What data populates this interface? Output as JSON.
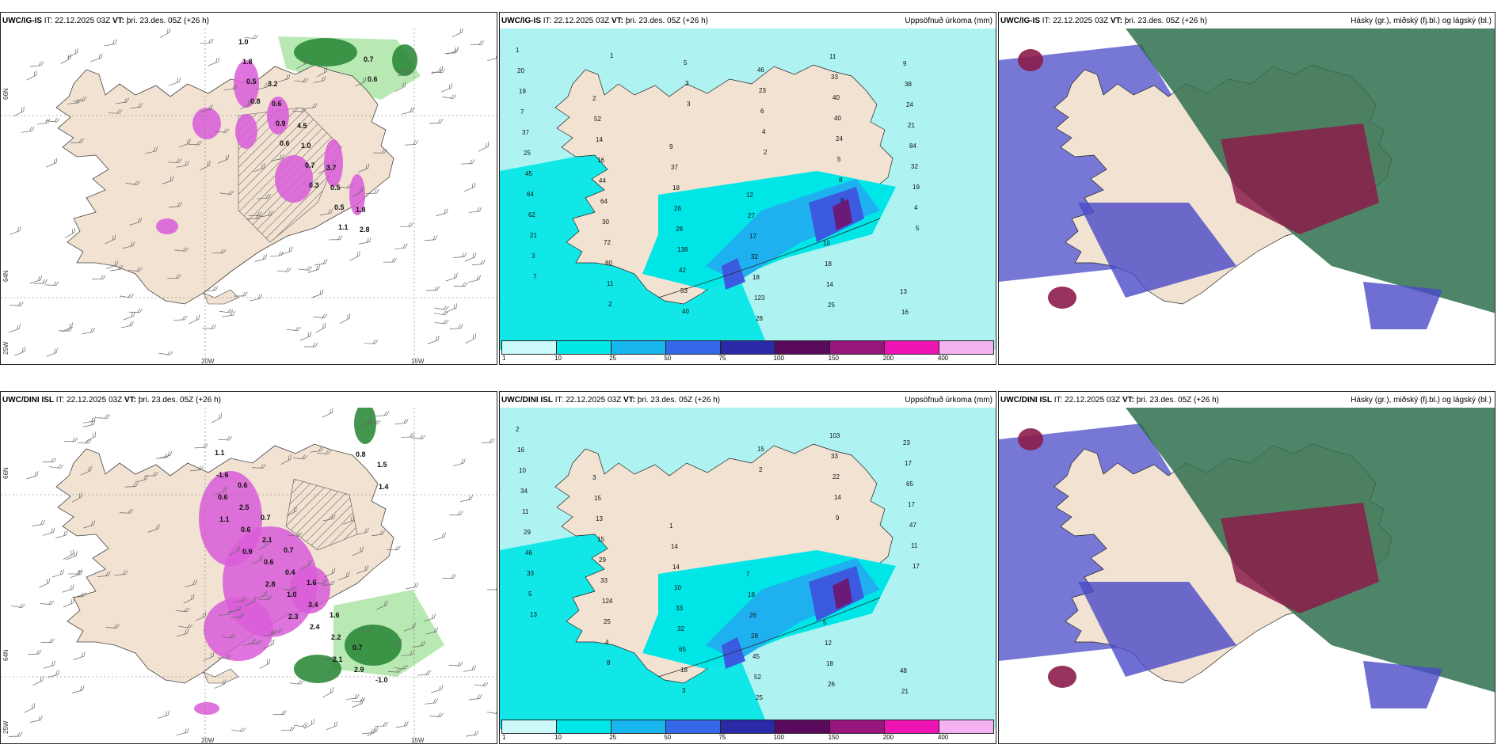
{
  "colors": {
    "land": "#f2e2d2",
    "precip_light": "#aef2f2",
    "precip_cyan": "#00e6e6",
    "precip_blue": "#1fb0ef",
    "precip_mid": "#3c5ae0",
    "precip_purple": "#6a1b78",
    "snow_magenta": "#d95cd9",
    "rain_green": "#2e8b3a",
    "cloud_high": "#2f6e4e",
    "cloud_mid": "#8b1c4a",
    "cloud_low": "#4a4ac8"
  },
  "legend": {
    "ticks": [
      "1",
      "10",
      "25",
      "50",
      "75",
      "100",
      "150",
      "200",
      "400"
    ],
    "colors": [
      "#ccfafa",
      "#00e8e8",
      "#19b5ee",
      "#3468e8",
      "#2a2aa8",
      "#5a0a5a",
      "#96167e",
      "#ee14b4",
      "#f4b2f0"
    ]
  },
  "axes": {
    "lon_labels": [
      "20W",
      "15W"
    ],
    "lat_labels": [
      "66N",
      "64N"
    ],
    "top_left_lat": "25W"
  },
  "rows": [
    {
      "model": "UWC/IG-IS",
      "it_label": "IT:",
      "it_value": "22.12.2025 03Z",
      "vt_label": "VT:",
      "vt_value": "þri. 23.des. 05Z",
      "lead": "(+26 h)",
      "precip_label": "Uppsöfnuð úrkoma (mm)",
      "cloud_label": "Hásky (gr.), miðský (fj.bl.) og lágský (bl.)",
      "precip_values": [
        "1",
        "2",
        "9",
        "12",
        "10",
        "13",
        "20",
        "52",
        "37",
        "27",
        "18",
        "16",
        "19",
        "14",
        "18",
        "17",
        "14",
        "9",
        "7",
        "16",
        "26",
        "32",
        "25",
        "38",
        "37",
        "44",
        "28",
        "18",
        "11",
        "24",
        "25",
        "64",
        "138",
        "123",
        "33",
        "21",
        "45",
        "30",
        "42",
        "28",
        "40",
        "84",
        "64",
        "72",
        "53",
        "46",
        "40",
        "32",
        "62",
        "80",
        "40",
        "23",
        "24",
        "19",
        "21",
        "11",
        "5",
        "6",
        "5",
        "4",
        "3",
        "2",
        "3",
        "4",
        "8",
        "5",
        "7",
        "1",
        "3",
        "2",
        "8"
      ],
      "phase_values": [
        "1.0",
        "3.2",
        "4.5",
        "3.7",
        "1.8",
        "1.8",
        "0.6",
        "1.0",
        "0.5",
        "2.8",
        "0.5",
        "0.9",
        "0.7",
        "0.5",
        "0.7",
        "0.8",
        "0.6",
        "0.3",
        "1.1",
        "0.6"
      ]
    },
    {
      "model": "UWC/DINI ISL",
      "it_label": "IT:",
      "it_value": "22.12.2025 03Z",
      "vt_label": "VT:",
      "vt_value": "þri. 23.des. 05Z",
      "lead": "(+26 h)",
      "precip_label": "Uppsöfnuð úrkoma (mm)",
      "cloud_label": "Hásky (gr.), miðský (fj.bl.) og lágský (bl.)",
      "precip_values": [
        "2",
        "3",
        "1",
        "7",
        "5",
        "48",
        "16",
        "15",
        "14",
        "18",
        "12",
        "21",
        "10",
        "13",
        "14",
        "26",
        "18",
        "23",
        "34",
        "15",
        "10",
        "28",
        "26",
        "17",
        "11",
        "29",
        "33",
        "45",
        "103",
        "65",
        "29",
        "33",
        "32",
        "52",
        "33",
        "17",
        "46",
        "124",
        "65",
        "25",
        "22",
        "47",
        "33",
        "25",
        "18",
        "15",
        "14",
        "11",
        "5",
        "4",
        "3",
        "2",
        "9",
        "17",
        "13",
        "8"
      ],
      "phase_values": [
        "1.1",
        "0.6",
        "0.7",
        "0.7",
        "1.6",
        "1.6",
        "0.7",
        "-1.0",
        "-1.6",
        "2.5",
        "2.1",
        "0.4",
        "3.4",
        "2.2",
        "2.9",
        "1.5",
        "0.6",
        "0.6",
        "0.6",
        "1.0",
        "2.4",
        "2.1",
        "0.8",
        "1.4",
        "1.1",
        "0.9",
        "2.8",
        "2.3"
      ]
    }
  ]
}
